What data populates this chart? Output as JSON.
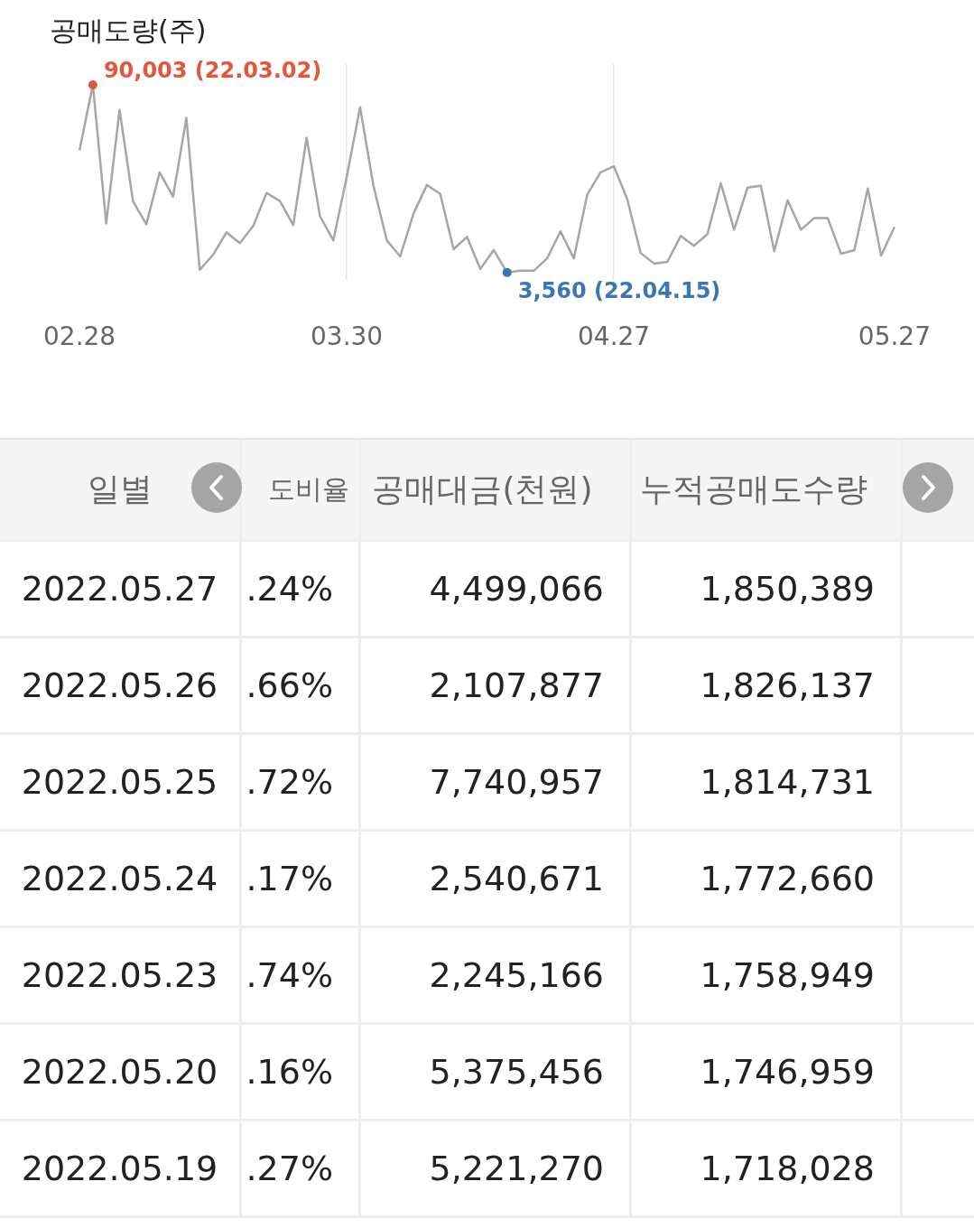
{
  "chart_data": {
    "type": "line",
    "title": "공매도량(주)",
    "categories": [
      "02.28",
      null,
      null,
      null,
      null,
      null,
      null,
      null,
      null,
      null,
      null,
      null,
      null,
      null,
      null,
      null,
      null,
      null,
      null,
      null,
      "03.30",
      null,
      null,
      null,
      null,
      null,
      null,
      null,
      null,
      null,
      null,
      null,
      null,
      null,
      null,
      null,
      null,
      null,
      null,
      null,
      "04.27",
      null,
      null,
      null,
      null,
      null,
      null,
      null,
      null,
      null,
      null,
      null,
      null,
      null,
      null,
      null,
      null,
      null,
      null,
      null,
      null,
      "05.27"
    ],
    "series": [
      {
        "color": "#a6a6a6",
        "values": [
          59900,
          90003,
          26200,
          78500,
          36500,
          25800,
          49700,
          38500,
          74800,
          4800,
          11800,
          22100,
          17100,
          25000,
          40200,
          36500,
          25400,
          65700,
          29500,
          18400,
          47600,
          79700,
          43500,
          18400,
          11000,
          30700,
          43900,
          39800,
          14300,
          20000,
          5200,
          13900,
          3560,
          4400,
          4400,
          10100,
          22500,
          10100,
          39400,
          49700,
          52500,
          37300,
          12600,
          7700,
          8500,
          20400,
          15900,
          21300,
          44700,
          23300,
          42700,
          43500,
          13400,
          36900,
          23300,
          28700,
          28700,
          12200,
          13900,
          42300,
          11400,
          24600
        ],
        "colors": [
          null,
          "#e2583e",
          null,
          null,
          null,
          null,
          null,
          null,
          null,
          null,
          null,
          null,
          null,
          null,
          null,
          null,
          null,
          null,
          null,
          null,
          null,
          null,
          null,
          null,
          null,
          null,
          null,
          null,
          null,
          null,
          null,
          null,
          "#3a78b5",
          null,
          null,
          null,
          null,
          null,
          null,
          null,
          null,
          null,
          null,
          null,
          null,
          null,
          null,
          null,
          null,
          null,
          null,
          null,
          null,
          null,
          null,
          null,
          null,
          null,
          null,
          null,
          null,
          null
        ],
        "value_labels": [
          null,
          "90,003 (22.03.02)",
          null,
          null,
          null,
          null,
          null,
          null,
          null,
          null,
          null,
          null,
          null,
          null,
          null,
          null,
          null,
          null,
          null,
          null,
          null,
          null,
          null,
          null,
          null,
          null,
          null,
          null,
          null,
          null,
          null,
          null,
          "3,560 (22.04.15)",
          null,
          null,
          null,
          null,
          null,
          null,
          null,
          null,
          null,
          null,
          null,
          null,
          null,
          null,
          null,
          null,
          null,
          null,
          null,
          null,
          null,
          null,
          null,
          null,
          null,
          null,
          null,
          null,
          null
        ]
      }
    ],
    "grid": "x",
    "legend": false,
    "marker": "none",
    "line_style": "solid",
    "annotations": [
      "일별",
      "도비율",
      "공매대금(천원)",
      "누적공매도수량",
      "2022.05.27",
      ".24%",
      "4,499,066",
      "1,850,389",
      "2022.05.26",
      ".66%",
      "2,107,877",
      "1,826,137",
      "2022.05.25",
      ".72%",
      "7,740,957",
      "1,814,731",
      "2022.05.24",
      ".17%",
      "2,540,671",
      "1,772,660",
      "2022.05.23",
      ".74%",
      "2,245,166",
      "1,758,949",
      "2022.05.20",
      ".16%",
      "5,375,456",
      "1,746,959",
      "2022.05.19",
      ".27%",
      "5,221,270",
      "1,718,028"
    ]
  }
}
